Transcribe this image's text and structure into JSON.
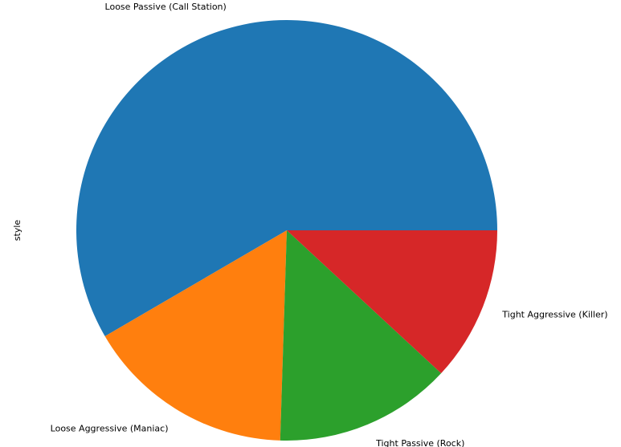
{
  "chart_data": {
    "type": "pie",
    "ylabel": "style",
    "slices": [
      {
        "label": "Loose Passive (Call Station)",
        "value": 58.4,
        "color": "#1f77b4"
      },
      {
        "label": "Loose Aggressive (Maniac)",
        "value": 16.1,
        "color": "#ff7f0e"
      },
      {
        "label": "Tight Passive (Rock)",
        "value": 13.6,
        "color": "#2ca02c"
      },
      {
        "label": "Tight Aggressive (Killer)",
        "value": 11.9,
        "color": "#d62728"
      }
    ],
    "start_angle_deg": 0,
    "direction": "counterclockwise",
    "grid": false,
    "legend": "none"
  }
}
